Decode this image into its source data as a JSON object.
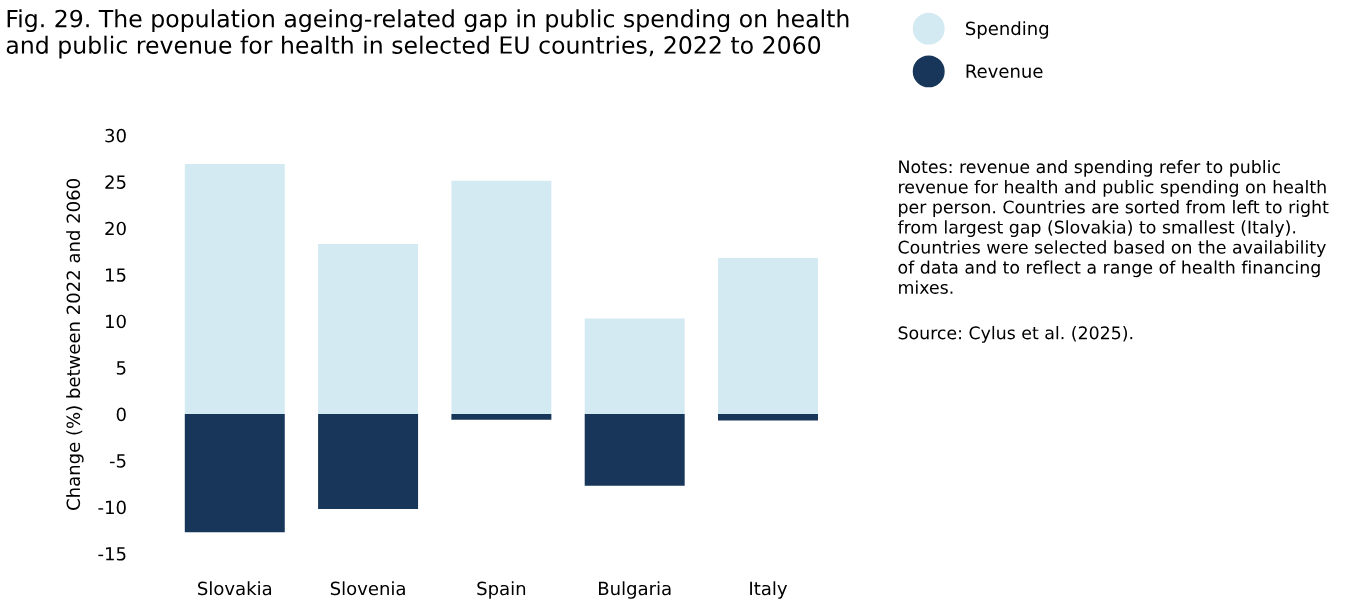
{
  "chart_data": {
    "type": "bar",
    "title": "Fig. 29. The population ageing-related gap in public spending on health and public revenue for health in selected EU countries, 2022 to 2060",
    "ylabel": "Change (%) between 2022 and 2060",
    "categories": [
      "Slovakia",
      "Slovenia",
      "Spain",
      "Bulgaria",
      "Italy"
    ],
    "stacked": true,
    "series": [
      {
        "name": "Spending",
        "color": "#d4eaf2",
        "values": [
          26.9,
          18.3,
          25.1,
          10.3,
          16.8
        ]
      },
      {
        "name": "Revenue",
        "color": "#17365a",
        "values": [
          -12.7,
          -10.2,
          -0.6,
          -7.7,
          -0.7
        ]
      }
    ],
    "ylim": [
      -15,
      30
    ],
    "yticks": [
      -15,
      -10,
      -5,
      0,
      5,
      10,
      15,
      20,
      25,
      30
    ],
    "grid": false,
    "legend": "top right",
    "annotations": [
      "Notes: revenue and spending refer to public revenue for health and public spending on health per person. Countries are sorted from left to right from largest gap (Slovakia) to smallest (Italy). Countries were selected based on the availability of data and to reflect a range of health financing mixes.",
      "Source: Cylus et al. (2025)."
    ]
  }
}
